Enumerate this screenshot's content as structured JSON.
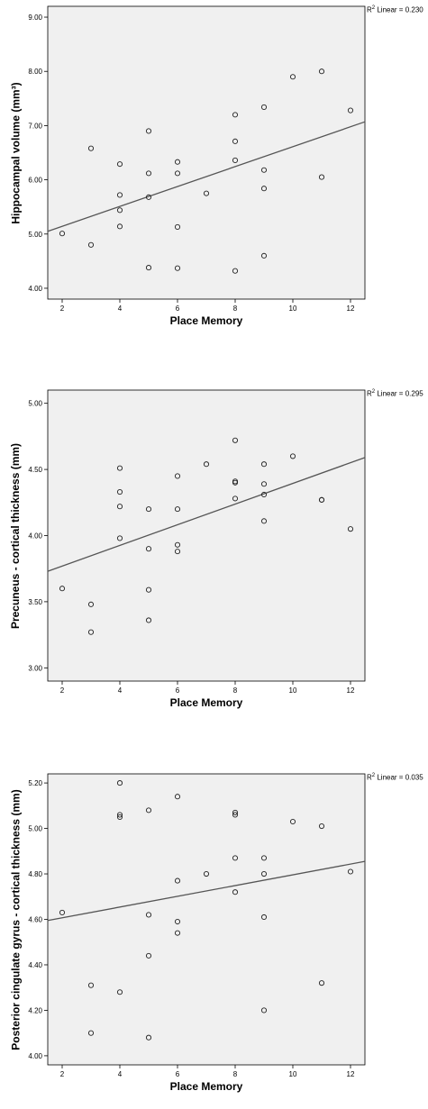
{
  "chart_data": [
    {
      "type": "scatter",
      "xlabel": "Place Memory",
      "ylabel": "Hippocampal volume (mm³)",
      "r2_text": "R² Linear = 0.230",
      "r2_sup": "2",
      "r2_rest": " Linear = 0.230",
      "xlim": [
        1.5,
        12.5
      ],
      "ylim": [
        3.8,
        9.2
      ],
      "xticks": [
        2,
        4,
        6,
        8,
        10,
        12
      ],
      "yticks": [
        4.0,
        5.0,
        6.0,
        7.0,
        8.0,
        9.0
      ],
      "ytick_labels": [
        "4.00",
        "5.00",
        "6.00",
        "7.00",
        "8.00",
        "9.00"
      ],
      "grid": false,
      "fit_line": {
        "x": [
          1.5,
          12.5
        ],
        "y": [
          5.05,
          7.07
        ]
      },
      "points": [
        [
          2,
          5.01
        ],
        [
          3,
          6.58
        ],
        [
          3,
          4.8
        ],
        [
          4,
          6.29
        ],
        [
          4,
          5.72
        ],
        [
          4,
          5.44
        ],
        [
          4,
          5.14
        ],
        [
          5,
          6.9
        ],
        [
          5,
          6.12
        ],
        [
          5,
          5.68
        ],
        [
          5,
          4.38
        ],
        [
          6,
          6.33
        ],
        [
          6,
          6.12
        ],
        [
          6,
          5.13
        ],
        [
          6,
          4.37
        ],
        [
          7,
          5.75
        ],
        [
          8,
          7.2
        ],
        [
          8,
          6.71
        ],
        [
          8,
          6.36
        ],
        [
          8,
          4.32
        ],
        [
          9,
          7.34
        ],
        [
          9,
          6.18
        ],
        [
          9,
          5.84
        ],
        [
          9,
          4.6
        ],
        [
          10,
          7.9
        ],
        [
          11,
          8.0
        ],
        [
          11,
          6.05
        ],
        [
          12,
          7.28
        ]
      ]
    },
    {
      "type": "scatter",
      "xlabel": "Place Memory",
      "ylabel": "Precuneus - cortical thickness (mm)",
      "r2_sup": "2",
      "r2_rest": " Linear = 0.295",
      "xlim": [
        1.5,
        12.5
      ],
      "ylim": [
        2.9,
        5.1
      ],
      "xticks": [
        2,
        4,
        6,
        8,
        10,
        12
      ],
      "yticks": [
        3.0,
        3.5,
        4.0,
        4.5,
        5.0
      ],
      "ytick_labels": [
        "3.00",
        "3.50",
        "4.00",
        "4.50",
        "5.00"
      ],
      "grid": false,
      "fit_line": {
        "x": [
          1.5,
          12.5
        ],
        "y": [
          3.73,
          4.59
        ]
      },
      "points": [
        [
          2,
          3.6
        ],
        [
          3,
          3.48
        ],
        [
          3,
          3.27
        ],
        [
          4,
          4.51
        ],
        [
          4,
          4.33
        ],
        [
          4,
          4.22
        ],
        [
          4,
          3.98
        ],
        [
          5,
          4.2
        ],
        [
          5,
          3.9
        ],
        [
          5,
          3.59
        ],
        [
          5,
          3.36
        ],
        [
          6,
          4.45
        ],
        [
          6,
          4.2
        ],
        [
          6,
          3.93
        ],
        [
          6,
          3.88
        ],
        [
          7,
          4.54
        ],
        [
          8,
          4.72
        ],
        [
          8,
          4.41
        ],
        [
          8,
          4.4
        ],
        [
          8,
          4.28
        ],
        [
          9,
          4.54
        ],
        [
          9,
          4.39
        ],
        [
          9,
          4.31
        ],
        [
          9,
          4.11
        ],
        [
          10,
          4.6
        ],
        [
          11,
          4.27
        ],
        [
          11,
          4.27
        ],
        [
          12,
          4.05
        ]
      ]
    },
    {
      "type": "scatter",
      "xlabel": "Place Memory",
      "ylabel": "Posterior cingulate gyrus - cortical thickness (mm)",
      "r2_sup": "2",
      "r2_rest": " Linear = 0.035",
      "xlim": [
        1.5,
        12.5
      ],
      "ylim": [
        3.96,
        5.24
      ],
      "xticks": [
        2,
        4,
        6,
        8,
        10,
        12
      ],
      "yticks": [
        4.0,
        4.2,
        4.4,
        4.6,
        4.8,
        5.0,
        5.2
      ],
      "ytick_labels": [
        "4.00",
        "4.20",
        "4.40",
        "4.60",
        "4.80",
        "5.00",
        "5.20"
      ],
      "grid": false,
      "fit_line": {
        "x": [
          1.5,
          12.5
        ],
        "y": [
          4.595,
          4.855
        ]
      },
      "points": [
        [
          2,
          4.63
        ],
        [
          3,
          4.31
        ],
        [
          3,
          4.1
        ],
        [
          4,
          5.2
        ],
        [
          4,
          5.06
        ],
        [
          4,
          5.05
        ],
        [
          4,
          4.28
        ],
        [
          5,
          5.08
        ],
        [
          5,
          4.62
        ],
        [
          5,
          4.44
        ],
        [
          5,
          4.08
        ],
        [
          6,
          5.14
        ],
        [
          6,
          4.77
        ],
        [
          6,
          4.59
        ],
        [
          6,
          4.54
        ],
        [
          7,
          4.8
        ],
        [
          8,
          5.07
        ],
        [
          8,
          5.06
        ],
        [
          8,
          4.87
        ],
        [
          8,
          4.72
        ],
        [
          9,
          4.87
        ],
        [
          9,
          4.8
        ],
        [
          9,
          4.61
        ],
        [
          9,
          4.2
        ],
        [
          10,
          5.03
        ],
        [
          11,
          5.01
        ],
        [
          11,
          4.32
        ],
        [
          12,
          4.81
        ]
      ]
    }
  ]
}
